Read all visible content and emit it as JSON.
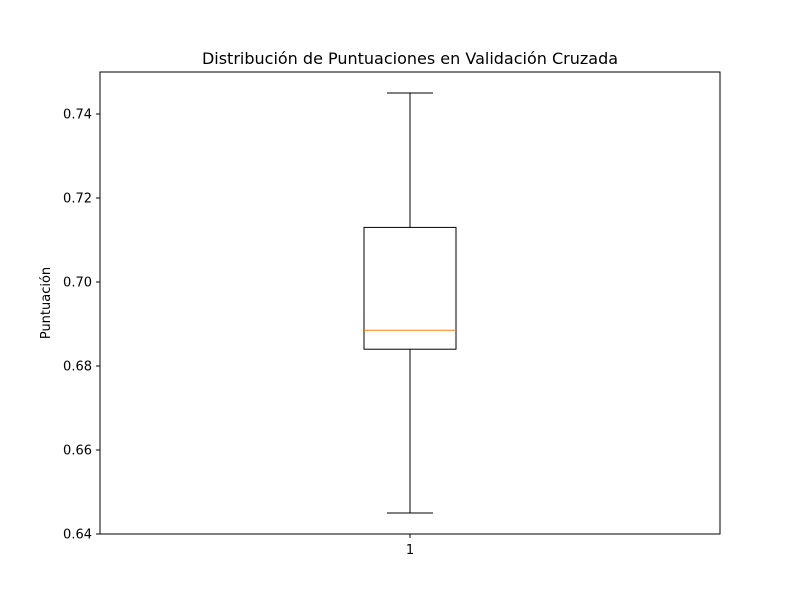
{
  "chart_data": {
    "type": "box",
    "title": "Distribución de Puntuaciones en Validación Cruzada",
    "xlabel": "",
    "ylabel": "Puntuación",
    "ylim": [
      0.64,
      0.75
    ],
    "y_ticks": [
      0.64,
      0.66,
      0.68,
      0.7,
      0.72,
      0.74
    ],
    "categories": [
      "1"
    ],
    "boxes": [
      {
        "category": "1",
        "whisker_low": 0.645,
        "q1": 0.684,
        "median": 0.6885,
        "q3": 0.713,
        "whisker_high": 0.745
      }
    ],
    "grid": false,
    "colors": {
      "box": "#000000",
      "median": "#ff7f0e",
      "whisker": "#000000"
    }
  }
}
